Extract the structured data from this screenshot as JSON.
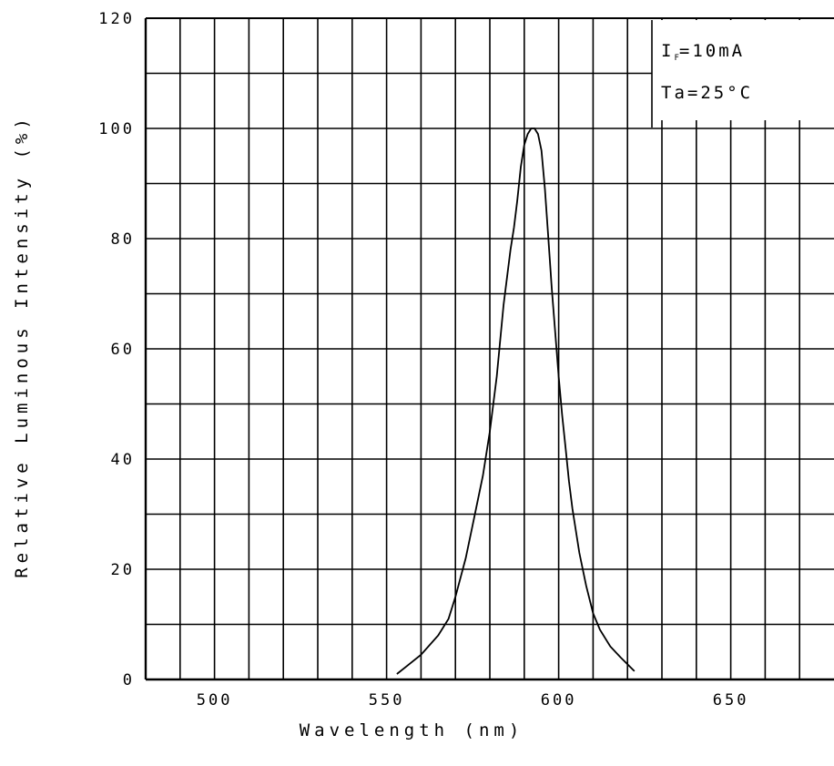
{
  "chart_data": {
    "type": "line",
    "xlabel": "Wavelength (nm)",
    "ylabel": "Relative Luminous Intensity (%)",
    "xlim": [
      480,
      680
    ],
    "ylim": [
      0,
      120
    ],
    "x_ticks": [
      500,
      550,
      600,
      650
    ],
    "y_ticks": [
      0,
      20,
      40,
      60,
      80,
      100,
      120
    ],
    "grid": true,
    "annotation": {
      "line1_main": "I",
      "line1_sub": "F",
      "line1_rest": "=10mA",
      "line2": "Ta=25°C"
    },
    "series": [
      {
        "x": [
          553,
          556,
          560,
          565,
          568,
          570,
          573,
          575,
          578,
          580,
          582,
          584,
          586,
          587,
          588,
          589,
          590,
          591,
          592,
          593,
          594,
          595,
          596,
          597,
          598,
          599,
          600,
          601,
          602,
          603,
          604,
          606,
          608,
          610,
          612,
          615,
          618,
          622
        ],
        "y": [
          1,
          2.5,
          4.5,
          8,
          11,
          15,
          22,
          28,
          37,
          45,
          55,
          68,
          78,
          82,
          87,
          93,
          97,
          99,
          100,
          100,
          99,
          96,
          89,
          80,
          71,
          63,
          55,
          48,
          42,
          36,
          31,
          23,
          17,
          12,
          9,
          6,
          4,
          1.5
        ]
      }
    ]
  }
}
